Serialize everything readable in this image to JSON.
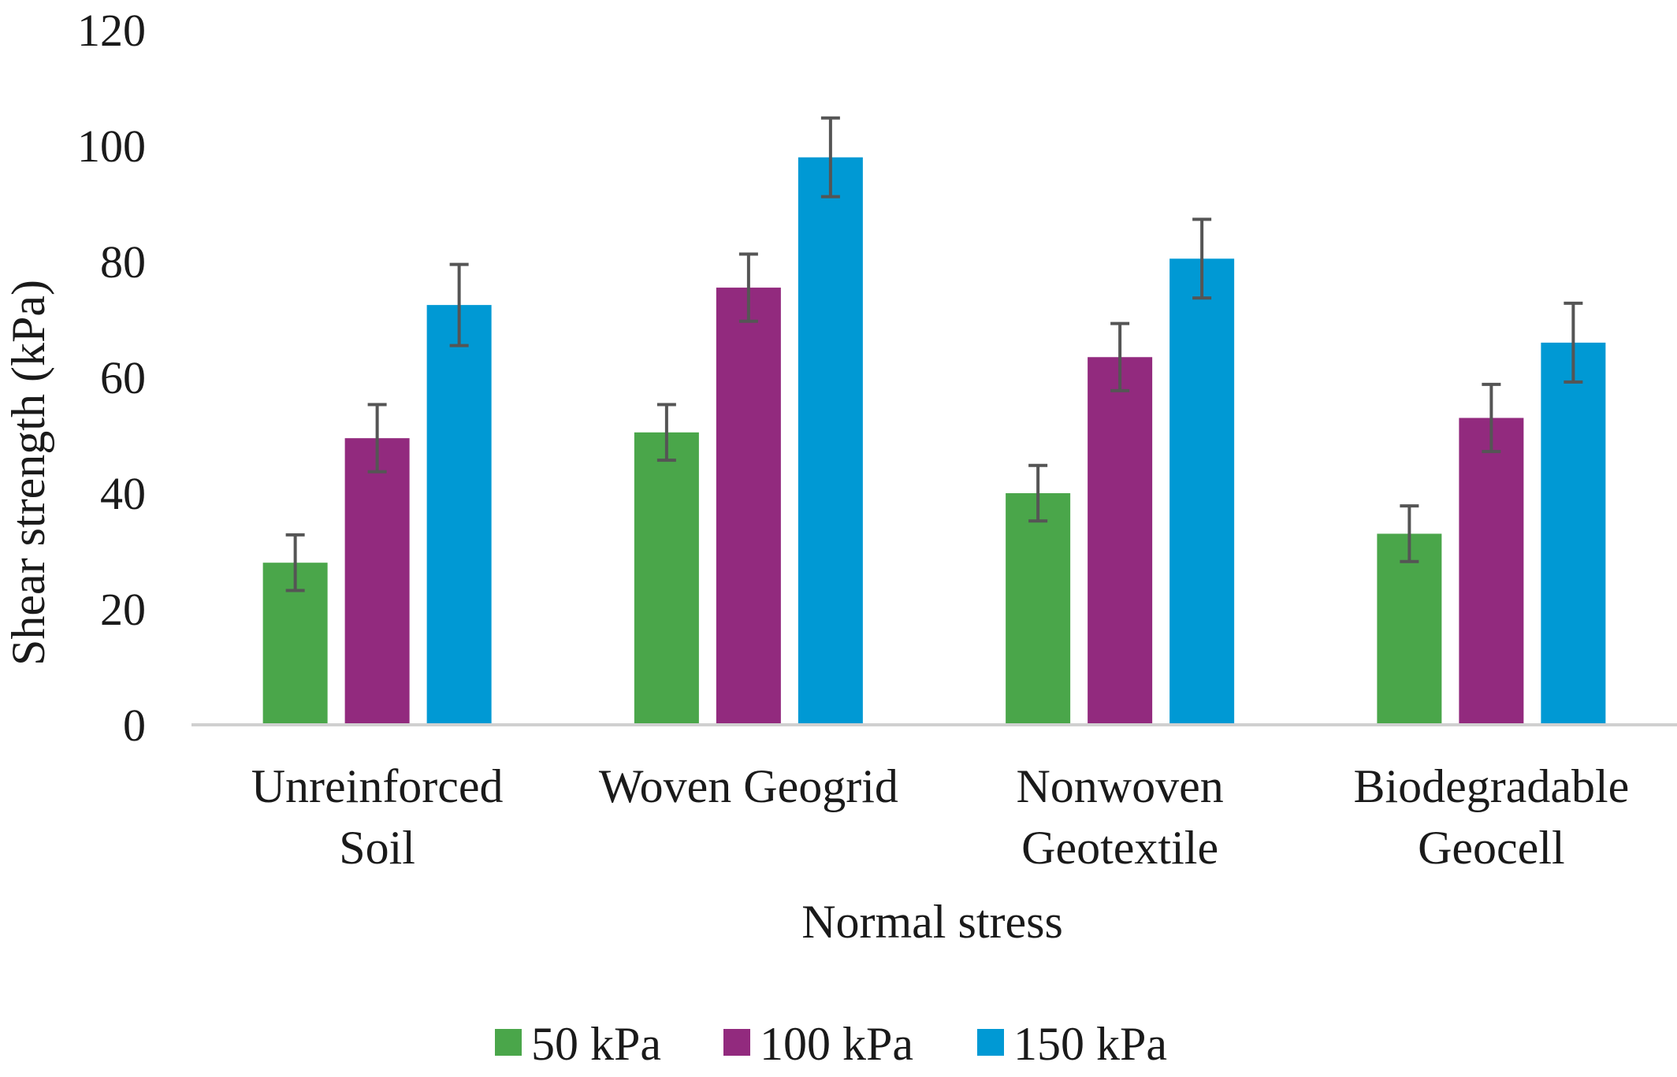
{
  "chart_data": {
    "type": "bar",
    "categories": [
      [
        "Unreinforced",
        "Soil"
      ],
      [
        "Woven Geogrid"
      ],
      [
        "Nonwoven",
        "Geotextile"
      ],
      [
        "Biodegradable",
        "Geocell"
      ]
    ],
    "series": [
      {
        "name": "50 kPa",
        "color": "#4aa64a",
        "values": [
          28,
          50.5,
          40,
          33
        ],
        "errors": [
          4.8,
          4.8,
          4.8,
          4.8
        ]
      },
      {
        "name": "100 kPa",
        "color": "#922a7e",
        "values": [
          49.5,
          75.5,
          63.5,
          53
        ],
        "errors": [
          5.8,
          5.8,
          5.8,
          5.8
        ]
      },
      {
        "name": "150 kPa",
        "color": "#0099d4",
        "values": [
          72.5,
          98,
          80.5,
          66
        ],
        "errors": [
          7,
          6.8,
          6.8,
          6.8
        ]
      }
    ],
    "title": "",
    "xlabel": "Normal stress",
    "ylabel": "Shear strength (kPa)",
    "ylim": [
      0,
      120
    ],
    "yticks": [
      "0",
      "20",
      "40",
      "60",
      "80",
      "100",
      "120"
    ],
    "grid": false,
    "legend": "bottom",
    "error_bar_color": "#555555",
    "axis_color": "#d0d0d0"
  }
}
